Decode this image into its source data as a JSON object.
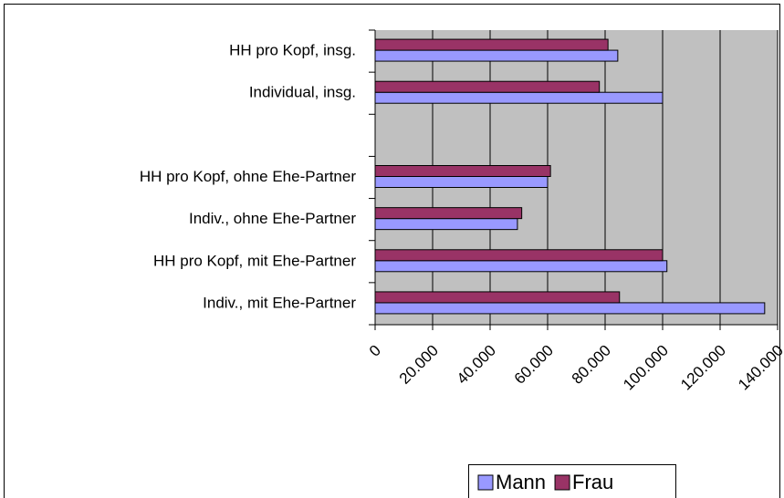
{
  "chart_data": {
    "type": "hbar",
    "categories": [
      "HH pro Kopf, insg.",
      "Individual, insg.",
      null,
      "HH pro Kopf, ohne Ehe-Partner",
      "Indiv., ohne Ehe-Partner",
      "HH pro Kopf, mit Ehe-Partner",
      "Indiv., mit Ehe-Partner"
    ],
    "series": [
      {
        "name": "Mann",
        "color": "#9999ff",
        "values": [
          84400,
          100000,
          null,
          60000,
          49500,
          101500,
          135500
        ]
      },
      {
        "name": "Frau",
        "color": "#993366",
        "values": [
          81000,
          78000,
          null,
          61000,
          51000,
          100000,
          85000
        ]
      }
    ],
    "xlim": [
      0,
      140000
    ],
    "xticks": [
      0,
      {
        "value": 20000,
        "label": "20.000"
      },
      {
        "value": 40000,
        "label": "40.000"
      },
      {
        "value": 60000,
        "label": "60.000"
      },
      {
        "value": 80000,
        "label": "80.000"
      },
      {
        "value": 100000,
        "label": "100.000"
      },
      {
        "value": 120000,
        "label": "120.000"
      },
      {
        "value": 140000,
        "label": "140.000"
      }
    ],
    "grid": true,
    "legend": "bottom"
  }
}
